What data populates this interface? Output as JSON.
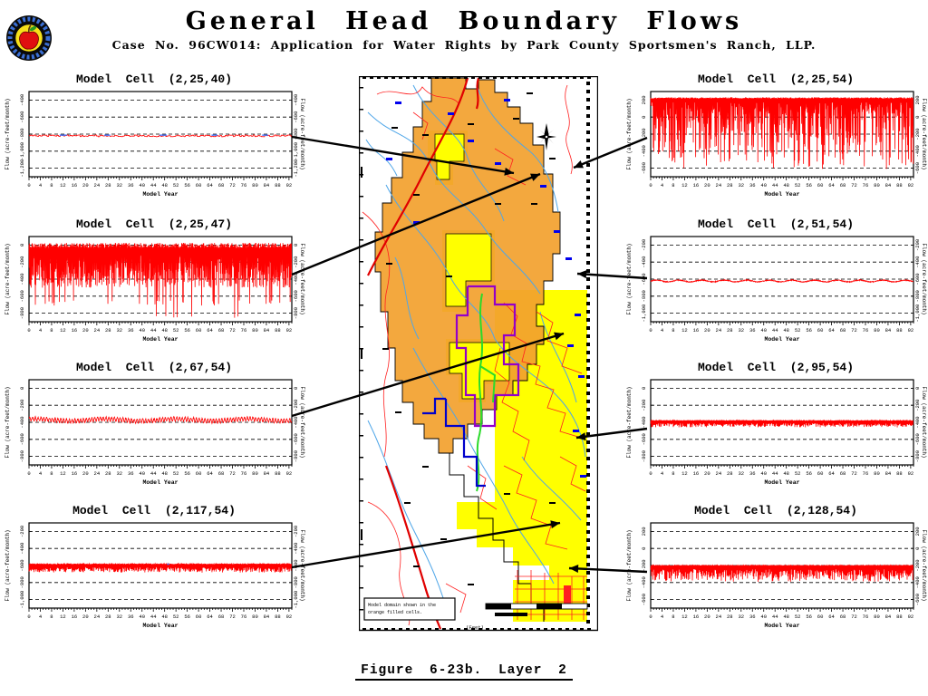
{
  "header": {
    "title": "General Head Boundary Flows",
    "subtitle": "Case No. 96CW014: Application for Water Rights by Park County Sportsmen's Ranch, LLP.",
    "logo": "apple-seal-logo"
  },
  "figure_caption": "Figure 6-23b.  Layer 2",
  "axis": {
    "x_label": "Model Year",
    "y_label": "Flow (acre-feet/month)",
    "x_tick_labels": [
      0,
      4,
      8,
      12,
      16,
      20,
      24,
      28,
      32,
      36,
      40,
      44,
      48,
      52,
      56,
      60,
      64,
      68,
      72,
      76,
      80,
      84,
      88,
      92
    ],
    "x_max_years": 93,
    "grid": "horizontal dashed lines at each y tick"
  },
  "chart_data": [
    {
      "type": "line",
      "title": "Model Cell (2,25,40)",
      "cell": "(2,25,40)",
      "y_tick_values": [
        -400,
        -600,
        -800,
        -1000,
        -1200
      ],
      "y_tick_labels": [
        "-400",
        "-600",
        "-800",
        "-1,000",
        "-1,200"
      ],
      "ylim": [
        -300,
        -1300
      ],
      "summary": "nearly constant flow ~ -820 acre-feet/month with tiny steps; short blue overlay segments",
      "gen": {
        "kind": "flat-step",
        "base": -820,
        "jitter": 10,
        "step_months": 7,
        "blue_segments": [
          [
            130,
            160
          ],
          [
            320,
            345
          ],
          [
            555,
            585
          ],
          [
            775,
            800
          ],
          [
            990,
            1015
          ]
        ],
        "blue_value": -812
      }
    },
    {
      "type": "line",
      "title": "Model Cell (2,25,47)",
      "cell": "(2,25,47)",
      "y_tick_values": [
        0,
        -200,
        -400,
        -600,
        -800
      ],
      "y_tick_labels": [
        "0",
        "-200",
        "-400",
        "-600",
        "-800"
      ],
      "ylim": [
        100,
        -900
      ],
      "summary": "dense monthly oscillation between ~+25 and -500 with recurring deep spikes to ~ -855",
      "gen": {
        "kind": "dense-spikes",
        "top": 25,
        "typ_low": 500,
        "deep": -855,
        "mid": -650
      }
    },
    {
      "type": "line",
      "title": "Model Cell (2,67,54)",
      "cell": "(2,67,54)",
      "y_tick_values": [
        0,
        -200,
        -400,
        -600,
        -800
      ],
      "y_tick_labels": [
        "0",
        "-200",
        "-400",
        "-600",
        "-800"
      ],
      "ylim": [
        100,
        -900
      ],
      "summary": "gently wavy line around -370, annual amplitude ~25",
      "gen": {
        "kind": "wavy",
        "base": -372,
        "annual_amp": 22,
        "slow_amp": 12,
        "noise": 9
      }
    },
    {
      "type": "line",
      "title": "Model Cell (2,117,54)",
      "cell": "(2,117,54)",
      "y_tick_values": [
        -200,
        -400,
        -600,
        -800,
        -1000
      ],
      "y_tick_labels": [
        "-200",
        "-400",
        "-600",
        "-800",
        "-1,000"
      ],
      "ylim": [
        -100,
        -1100
      ],
      "summary": "baseline ~ -585 with regular downward teeth to ~ -680",
      "gen": {
        "kind": "teeth",
        "base": -585,
        "noise": 6,
        "tooth_min": 40,
        "tooth_max": 95,
        "every": 3,
        "blue_segments": [
          [
            586,
            596
          ]
        ],
        "blue_value": -585
      }
    },
    {
      "type": "line",
      "title": "Model Cell (2,25,54)",
      "cell": "(2,25,54)",
      "y_tick_values": [
        200,
        0,
        -200,
        -400,
        -600
      ],
      "y_tick_labels": [
        "200",
        "0",
        "-200",
        "-400",
        "-600"
      ],
      "ylim": [
        300,
        -700
      ],
      "summary": "plateau ~ +230 with dense downward spikes of varying depth, deepest ~ -610",
      "gen": {
        "kind": "plateau-dips",
        "base": 232,
        "dip_min": 60,
        "dip_span": 780,
        "dip_pow": 2.1,
        "floor": -612
      }
    },
    {
      "type": "line",
      "title": "Model Cell (2,51,54)",
      "cell": "(2,51,54)",
      "y_tick_values": [
        -200,
        -400,
        -600,
        -800,
        -1000
      ],
      "y_tick_labels": [
        "-200",
        "-400",
        "-600",
        "-800",
        "-1,000"
      ],
      "ylim": [
        -100,
        -1100
      ],
      "summary": "nearly flat slightly wavy line around -620",
      "gen": {
        "kind": "flat-wavy",
        "base": -622,
        "noise": 5,
        "slow_amp": 10
      }
    },
    {
      "type": "line",
      "title": "Model Cell (2,95,54)",
      "cell": "(2,95,54)",
      "y_tick_values": [
        0,
        -200,
        -400,
        -600,
        -800
      ],
      "y_tick_labels": [
        "0",
        "-200",
        "-400",
        "-600",
        "-800"
      ],
      "ylim": [
        100,
        -900
      ],
      "summary": "baseline ~ -382 with short regular teeth to ~ -455",
      "gen": {
        "kind": "teeth",
        "base": -382,
        "noise": 4,
        "tooth_min": 30,
        "tooth_max": 75,
        "every": 3
      }
    },
    {
      "type": "line",
      "title": "Model Cell (2,128,54)",
      "cell": "(2,128,54)",
      "y_tick_values": [
        200,
        0,
        -200,
        -400,
        -600
      ],
      "y_tick_labels": [
        "200",
        "0",
        "-200",
        "-400",
        "-600"
      ],
      "ylim": [
        300,
        -700
      ],
      "summary": "baseline ~ -200 with downward spikes to ~ -390",
      "gen": {
        "kind": "teeth",
        "base": -202,
        "noise": 5,
        "tooth_min": 40,
        "tooth_max": 185,
        "every": 3
      }
    }
  ],
  "map": {
    "description": "groundwater model map: orange model-domain cells, yellow outcrop area, blue streams, red roads and section lines, dotted east boundary cell column, compass rose",
    "legend_line1": "Model domain shown in the",
    "legend_line2": "orange filled cells.",
    "axis_caption": "(Feet)",
    "north_symbol": "compass-rose"
  },
  "arrows": [
    {
      "from": [
        322,
        151
      ],
      "to": [
        567,
        191
      ],
      "links": "Model Cell (2,25,40)"
    },
    {
      "from": [
        322,
        303
      ],
      "to": [
        596,
        192
      ],
      "links": "Model Cell (2,25,47)"
    },
    {
      "from": [
        322,
        459
      ],
      "to": [
        622,
        368
      ],
      "links": "Model Cell (2,67,54)"
    },
    {
      "from": [
        322,
        626
      ],
      "to": [
        618,
        577
      ],
      "links": "Model Cell (2,117,54)"
    },
    {
      "from": [
        714,
        152
      ],
      "to": [
        633,
        185
      ],
      "links": "Model Cell (2,25,54)"
    },
    {
      "from": [
        714,
        307
      ],
      "to": [
        637,
        302
      ],
      "links": "Model Cell (2,51,54)"
    },
    {
      "from": [
        714,
        473
      ],
      "to": [
        636,
        483
      ],
      "links": "Model Cell (2,95,54)"
    },
    {
      "from": [
        714,
        631
      ],
      "to": [
        628,
        627
      ],
      "links": "Model Cell (2,128,54)"
    }
  ],
  "colors": {
    "series_red": "#ff0000",
    "overlay_blue": "#4477ff",
    "grid_black": "#000000",
    "map_orange": "#f2a12e",
    "map_yellow": "#ffff00",
    "stream_blue": "#4fa6e8",
    "thin_red": "#ff2020",
    "thick_red": "#e00000",
    "purple": "#9400c8",
    "green": "#2bdb2b",
    "dark_blue": "#0000cc",
    "cell_blue": "#0000ee"
  }
}
